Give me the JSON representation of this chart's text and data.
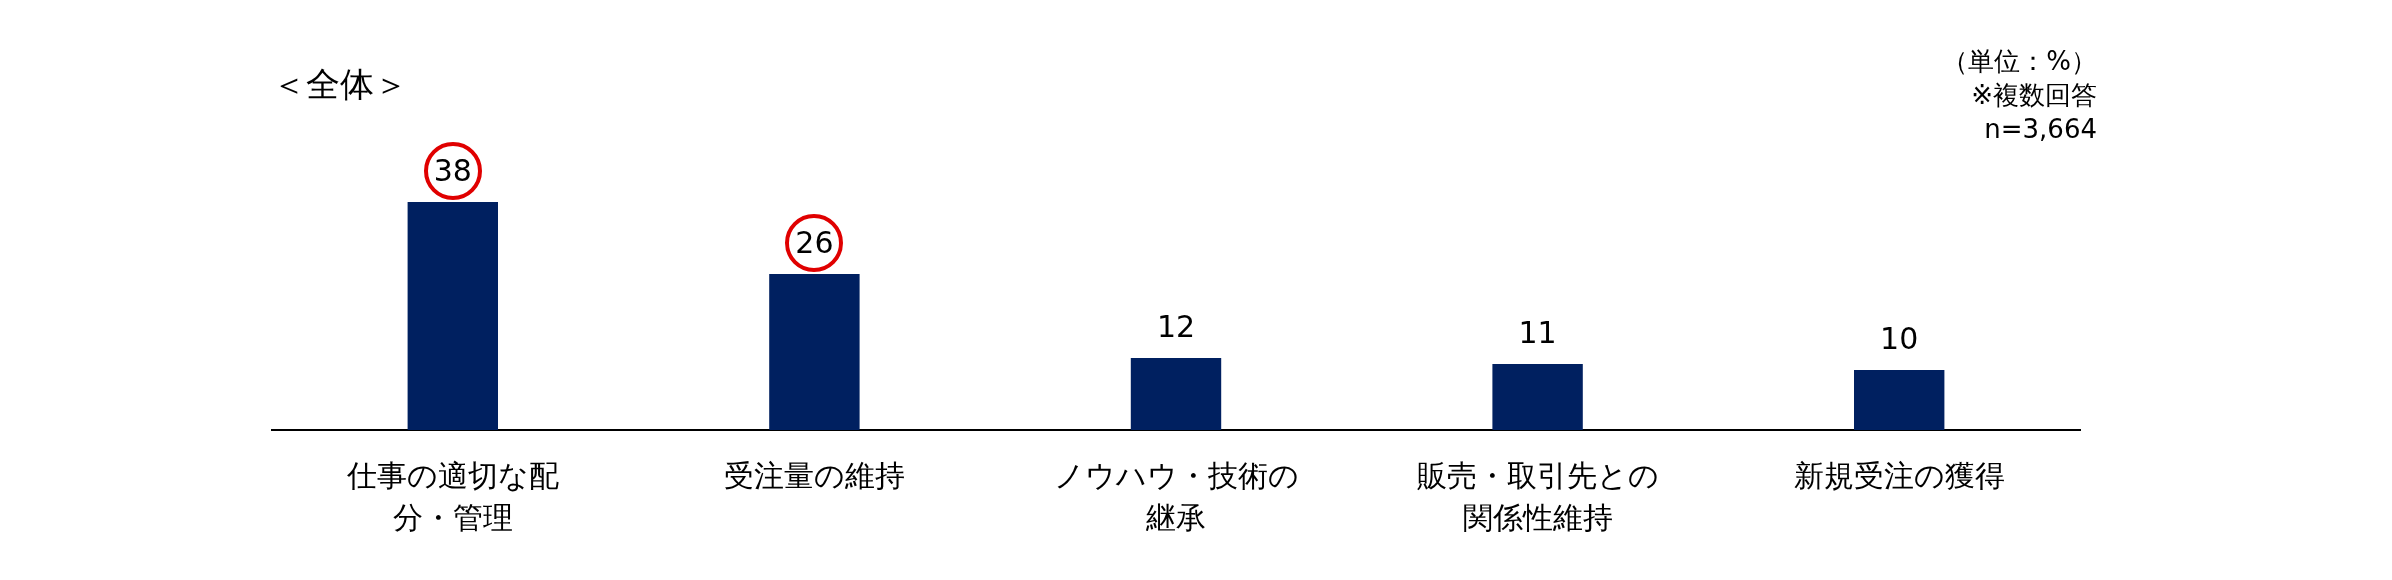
{
  "chart_data": {
    "type": "bar",
    "title": "＜全体＞",
    "annotations": [
      "（単位：%）",
      "※複数回答",
      "n=3,664"
    ],
    "categories": [
      "仕事の適切な配分・管理",
      "受注量の維持",
      "ノウハウ・技術の継承",
      "販売・取引先との関係性維持",
      "新規受注の獲得"
    ],
    "values": [
      38,
      26,
      12,
      11,
      10
    ],
    "color": "#002060",
    "data_labels": true,
    "grid": false,
    "legend": false
  }
}
